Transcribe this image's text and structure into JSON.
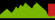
{
  "chart_data": {
    "type": "area",
    "xlim": [
      0,
      24
    ],
    "ylim": [
      -1,
      9
    ],
    "tick_labels": false,
    "grid": false,
    "series": [
      {
        "type": "area",
        "color": "#cc2222",
        "x": [
          21,
          24
        ],
        "values": [
          7.0,
          7.0
        ]
      },
      {
        "type": "area",
        "color": "#7ab800",
        "x": [
          0,
          1,
          2,
          3,
          4,
          5,
          6,
          7,
          8,
          9,
          10,
          11,
          12,
          13,
          14,
          15,
          16,
          17,
          18,
          19,
          20,
          21,
          22,
          23,
          24
        ],
        "values": [
          1.5,
          2.5,
          3.5,
          4.5,
          3.5,
          2.5,
          3.5,
          5.5,
          4.5,
          6.5,
          5.5,
          7.5,
          6.5,
          5.5,
          4.5,
          6.5,
          7.5,
          6.5,
          5.5,
          4.5,
          3.5,
          1.0,
          0.5,
          1.0,
          0.5
        ]
      }
    ]
  }
}
